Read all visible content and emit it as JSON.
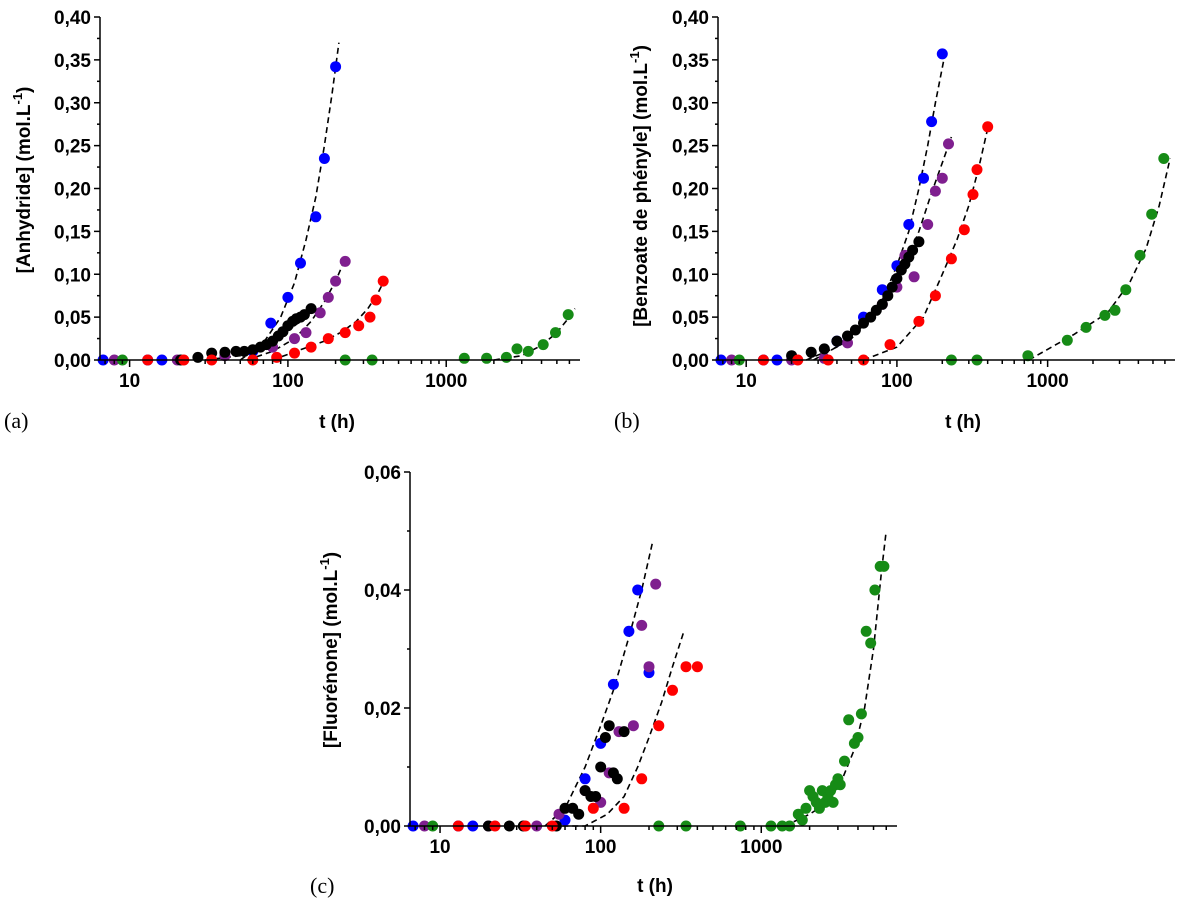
{
  "colors": {
    "blue": "#0000ff",
    "purple": "#7f1f8f",
    "black": "#000000",
    "red": "#ff0000",
    "green": "#168b16"
  },
  "chart_data": [
    {
      "panel_label": "(a)",
      "type": "scatter",
      "xlabel": "t (h)",
      "ylabel": "[Anhydride] (mol.L",
      "ylabel_sup": "-1",
      "ylabel_tail": ")",
      "x_scale": "log",
      "xlim": [
        6.5,
        7000
      ],
      "ylim": [
        0,
        0.4
      ],
      "xticks": [
        10,
        100,
        1000
      ],
      "xtick_labels": [
        "10",
        "100",
        "1000"
      ],
      "yticks": [
        0,
        0.05,
        0.1,
        0.15,
        0.2,
        0.25,
        0.3,
        0.35,
        0.4
      ],
      "ytick_labels": [
        "0,00",
        "0,05",
        "0,10",
        "0,15",
        "0,20",
        "0,25",
        "0,30",
        "0,35",
        "0,40"
      ],
      "series": [
        {
          "color": "blue",
          "x": [
            6.8,
            13,
            16,
            60,
            78,
            100,
            120,
            150,
            170,
            200
          ],
          "y": [
            0,
            0,
            0,
            0.01,
            0.043,
            0.073,
            0.113,
            0.167,
            0.235,
            0.342
          ]
        },
        {
          "color": "purple",
          "x": [
            8,
            20,
            40,
            80,
            110,
            130,
            160,
            180,
            200,
            230
          ],
          "y": [
            0,
            0,
            0.005,
            0.015,
            0.025,
            0.032,
            0.055,
            0.073,
            0.092,
            0.115
          ]
        },
        {
          "color": "black",
          "x": [
            21,
            27,
            33,
            40,
            47,
            53,
            60,
            67,
            73,
            80,
            87,
            93,
            100,
            107,
            113,
            120,
            127,
            140
          ],
          "y": [
            0,
            0.003,
            0.008,
            0.009,
            0.01,
            0.01,
            0.012,
            0.015,
            0.018,
            0.022,
            0.028,
            0.033,
            0.04,
            0.045,
            0.048,
            0.05,
            0.053,
            0.06
          ]
        },
        {
          "color": "red",
          "x": [
            13,
            22,
            33,
            60,
            85,
            110,
            140,
            180,
            230,
            280,
            330,
            360,
            400
          ],
          "y": [
            0,
            0,
            0,
            0,
            0.003,
            0.008,
            0.015,
            0.025,
            0.032,
            0.04,
            0.05,
            0.07,
            0.092
          ]
        },
        {
          "color": "green",
          "x": [
            9,
            230,
            340,
            1300,
            1800,
            2400,
            2800,
            3300,
            4100,
            4900,
            5900
          ],
          "y": [
            0,
            0,
            0,
            0.002,
            0.002,
            0.003,
            0.013,
            0.01,
            0.018,
            0.032,
            0.053
          ]
        }
      ],
      "fits": [
        {
          "x": [
            50,
            70,
            90,
            110,
            130,
            150,
            170,
            190,
            210
          ],
          "y": [
            0,
            0.02,
            0.05,
            0.09,
            0.14,
            0.19,
            0.25,
            0.31,
            0.37
          ]
        },
        {
          "x": [
            55,
            80,
            110,
            140,
            170,
            200,
            230
          ],
          "y": [
            0,
            0.01,
            0.025,
            0.045,
            0.068,
            0.092,
            0.118
          ]
        },
        {
          "x": [
            30,
            50,
            70,
            90,
            110,
            130,
            150
          ],
          "y": [
            0,
            0.005,
            0.015,
            0.028,
            0.04,
            0.05,
            0.062
          ]
        },
        {
          "x": [
            80,
            120,
            170,
            220,
            270,
            320,
            370,
            420
          ],
          "y": [
            0,
            0.012,
            0.022,
            0.033,
            0.045,
            0.06,
            0.078,
            0.098
          ]
        },
        {
          "x": [
            2000,
            3000,
            4000,
            5000,
            6000,
            6500
          ],
          "y": [
            0,
            0.005,
            0.017,
            0.032,
            0.05,
            0.06
          ]
        }
      ]
    },
    {
      "panel_label": "(b)",
      "type": "scatter",
      "xlabel": "t (h)",
      "ylabel": "[Benzoate de phényle] (mol.L",
      "ylabel_sup": "-1",
      "ylabel_tail": ")",
      "x_scale": "log",
      "xlim": [
        6.5,
        7000
      ],
      "ylim": [
        0,
        0.4
      ],
      "xticks": [
        10,
        100,
        1000
      ],
      "xtick_labels": [
        "10",
        "100",
        "1000"
      ],
      "yticks": [
        0,
        0.05,
        0.1,
        0.15,
        0.2,
        0.25,
        0.3,
        0.35,
        0.4
      ],
      "ytick_labels": [
        "0,00",
        "0,05",
        "0,10",
        "0,15",
        "0,20",
        "0,25",
        "0,30",
        "0,35",
        "0,40"
      ],
      "series": [
        {
          "color": "blue",
          "x": [
            6.8,
            13,
            16,
            40,
            60,
            80,
            100,
            120,
            150,
            170,
            200
          ],
          "y": [
            0,
            0,
            0,
            0.022,
            0.05,
            0.082,
            0.11,
            0.158,
            0.212,
            0.278,
            0.357
          ]
        },
        {
          "color": "purple",
          "x": [
            8,
            20,
            33,
            47,
            80,
            100,
            113,
            130,
            160,
            180,
            200,
            220
          ],
          "y": [
            0,
            0,
            0.002,
            0.02,
            0.065,
            0.085,
            0.122,
            0.097,
            0.158,
            0.197,
            0.212,
            0.252
          ]
        },
        {
          "color": "black",
          "x": [
            20,
            27,
            33,
            40,
            47,
            53,
            60,
            67,
            73,
            80,
            87,
            93,
            100,
            107,
            113,
            120,
            127,
            140
          ],
          "y": [
            0.005,
            0.009,
            0.013,
            0.022,
            0.028,
            0.035,
            0.043,
            0.05,
            0.058,
            0.065,
            0.075,
            0.085,
            0.095,
            0.105,
            0.112,
            0.12,
            0.128,
            0.138
          ]
        },
        {
          "color": "red",
          "x": [
            13,
            22,
            35,
            60,
            90,
            140,
            180,
            230,
            280,
            320,
            340,
            400
          ],
          "y": [
            0,
            0,
            0,
            0,
            0.018,
            0.045,
            0.075,
            0.118,
            0.152,
            0.193,
            0.222,
            0.272
          ]
        },
        {
          "color": "green",
          "x": [
            9,
            230,
            340,
            740,
            1350,
            1800,
            2400,
            2800,
            3300,
            4100,
            4900,
            5900
          ],
          "y": [
            0,
            0,
            0,
            0.005,
            0.023,
            0.038,
            0.052,
            0.058,
            0.082,
            0.122,
            0.17,
            0.235
          ]
        }
      ],
      "fits": [
        {
          "x": [
            25,
            40,
            60,
            80,
            100,
            120,
            140,
            160,
            180,
            210
          ],
          "y": [
            0,
            0.015,
            0.04,
            0.07,
            0.11,
            0.15,
            0.2,
            0.25,
            0.3,
            0.36
          ]
        },
        {
          "x": [
            28,
            50,
            80,
            110,
            140,
            170,
            200,
            230
          ],
          "y": [
            0,
            0.025,
            0.065,
            0.105,
            0.15,
            0.195,
            0.23,
            0.26
          ]
        },
        {
          "x": [
            60,
            100,
            150,
            200,
            250,
            300,
            350,
            400
          ],
          "y": [
            0,
            0.015,
            0.05,
            0.1,
            0.14,
            0.18,
            0.225,
            0.27
          ]
        },
        {
          "x": [
            750,
            1500,
            2500,
            3500,
            4500,
            5500,
            6500
          ],
          "y": [
            0,
            0.03,
            0.055,
            0.09,
            0.13,
            0.18,
            0.235
          ]
        }
      ]
    },
    {
      "panel_label": "(c)",
      "type": "scatter",
      "xlabel": "t (h)",
      "ylabel": "[Fluorénone] (mol.L",
      "ylabel_sup": "-1",
      "ylabel_tail": ")",
      "x_scale": "log",
      "xlim": [
        6.5,
        7000
      ],
      "ylim": [
        0,
        0.06
      ],
      "xticks": [
        10,
        100,
        1000
      ],
      "xtick_labels": [
        "10",
        "100",
        "1000"
      ],
      "yticks": [
        0,
        0.02,
        0.04,
        0.06
      ],
      "ytick_labels": [
        "0,00",
        "0,02",
        "0,04",
        "0,06"
      ],
      "series": [
        {
          "color": "blue",
          "x": [
            6.8,
            13,
            16,
            60,
            80,
            100,
            120,
            150,
            170,
            200
          ],
          "y": [
            0,
            0,
            0,
            0.001,
            0.008,
            0.014,
            0.024,
            0.033,
            0.04,
            0.026
          ]
        },
        {
          "color": "purple",
          "x": [
            8,
            20,
            40,
            55,
            80,
            100,
            113,
            130,
            160,
            180,
            200,
            220
          ],
          "y": [
            0,
            0,
            0,
            0.002,
            0.006,
            0.004,
            0.009,
            0.016,
            0.017,
            0.034,
            0.027,
            0.041
          ]
        },
        {
          "color": "black",
          "x": [
            20,
            27,
            33,
            53,
            60,
            67,
            73,
            80,
            87,
            93,
            100,
            107,
            113,
            120,
            127,
            140
          ],
          "y": [
            0,
            0,
            0,
            0,
            0.003,
            0.003,
            0.002,
            0.006,
            0.005,
            0.005,
            0.01,
            0.015,
            0.017,
            0.009,
            0.008,
            0.016
          ]
        },
        {
          "color": "red",
          "x": [
            13,
            22,
            34,
            50,
            90,
            140,
            180,
            230,
            280,
            340,
            400
          ],
          "y": [
            0,
            0,
            0,
            0,
            0.003,
            0.003,
            0.008,
            0.017,
            0.023,
            0.027,
            0.027
          ]
        },
        {
          "color": "green",
          "x": [
            9,
            230,
            340,
            740,
            1150,
            1350,
            1500,
            1700,
            1800,
            1900,
            2000,
            2100,
            2200,
            2300,
            2400,
            2500,
            2600,
            2700,
            2800,
            2900,
            3000,
            3100,
            3300,
            3500,
            3800,
            4000,
            4200,
            4500,
            4800,
            5100,
            5500,
            5800
          ],
          "y": [
            0,
            0,
            0,
            0,
            0,
            0,
            0,
            0.002,
            0.001,
            0.003,
            0.006,
            0.005,
            0.004,
            0.003,
            0.006,
            0.004,
            0.005,
            0.006,
            0.004,
            0.007,
            0.008,
            0.007,
            0.011,
            0.018,
            0.014,
            0.015,
            0.019,
            0.033,
            0.031,
            0.04,
            0.044,
            0.044
          ]
        }
      ],
      "fits": [
        {
          "x": [
            45,
            60,
            80,
            100,
            120,
            150,
            180,
            210
          ],
          "y": [
            0,
            0.003,
            0.01,
            0.017,
            0.023,
            0.032,
            0.04,
            0.048
          ]
        },
        {
          "x": [
            50,
            80,
            110,
            140,
            170,
            200,
            240,
            280,
            330
          ],
          "y": [
            0,
            0,
            0.002,
            0.005,
            0.01,
            0.015,
            0.021,
            0.027,
            0.033
          ]
        },
        {
          "x": [
            1400,
            2000,
            2600,
            3200,
            3800,
            4400,
            5000,
            5600,
            6000
          ],
          "y": [
            0,
            0.002,
            0.004,
            0.008,
            0.013,
            0.02,
            0.03,
            0.043,
            0.05
          ]
        }
      ]
    }
  ]
}
